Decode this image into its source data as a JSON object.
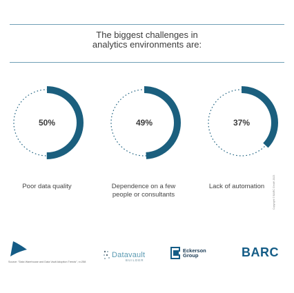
{
  "header": {
    "title_line1": "The biggest challenges in",
    "title_line2": "analytics environments are:"
  },
  "chart_data": {
    "type": "donut",
    "categories": [
      "Poor data quality",
      "Dependence on a few people or consultants",
      "Lack of automation"
    ],
    "values": [
      50,
      49,
      37
    ],
    "value_labels": [
      "50%",
      "49%",
      "37%"
    ],
    "label_lines": [
      [
        "Poor data quality"
      ],
      [
        "Dependence on a few",
        "people or consultants"
      ],
      [
        "Lack of automation"
      ]
    ],
    "colors": {
      "fill": "#1b5f7e",
      "track": "#1b5f7e"
    }
  },
  "footer": {
    "source": "Source: \"Data Warehouse and Data Vault Adoption Trends\", n=258",
    "copyright": "Copyright © BARC GmbH 2023",
    "logos": {
      "datavault": "Datavault",
      "datavault_sub": "BUILDER",
      "eckerson_line1": "Eckerson",
      "eckerson_line2": "Group",
      "barc": "BARC"
    }
  }
}
